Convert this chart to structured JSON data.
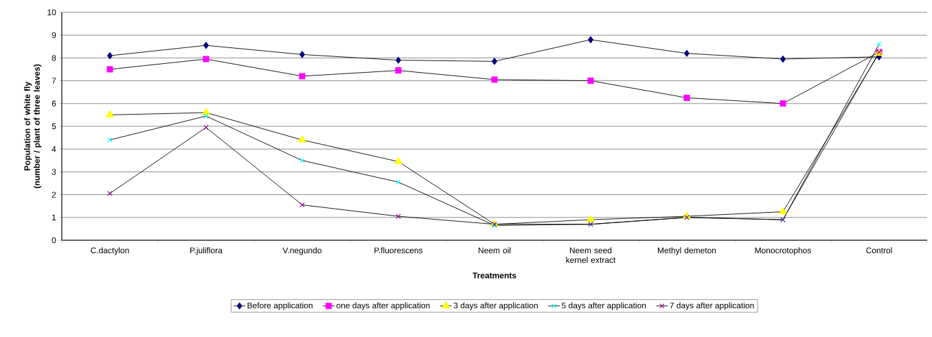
{
  "chart_data": {
    "type": "line",
    "xlabel": "Treatments",
    "ylabel": "Population of white fly (number / plant of three leaves)",
    "categories": [
      "C.dactylon",
      "P.juliflora",
      "V.negundo",
      "P.fluorescens",
      "Neem oil",
      "Neem seed kernel extract",
      "Methyl demeton",
      "Monocrotophos",
      "Control"
    ],
    "ylim": [
      0,
      10
    ],
    "yticks": [
      0,
      1,
      2,
      3,
      4,
      5,
      6,
      7,
      8,
      9,
      10
    ],
    "grid": "y",
    "legend": "bottom",
    "series": [
      {
        "name": "Before application",
        "color": "#000080",
        "marker": "diamond",
        "values": [
          8.1,
          8.55,
          8.15,
          7.9,
          7.85,
          8.8,
          8.2,
          7.95,
          8.05
        ]
      },
      {
        "name": "one days after application",
        "color": "#ff00ff",
        "marker": "square",
        "values": [
          7.5,
          7.95,
          7.2,
          7.45,
          7.05,
          7.0,
          6.25,
          6.0,
          8.25
        ]
      },
      {
        "name": "3 days after application",
        "color": "#ffff00",
        "marker": "triangle",
        "values": [
          5.5,
          5.6,
          4.4,
          3.45,
          0.7,
          0.9,
          1.05,
          1.25,
          8.2
        ]
      },
      {
        "name": "5 days after application",
        "color": "#00ffff",
        "marker": "cross",
        "values": [
          4.4,
          5.45,
          3.5,
          2.55,
          0.65,
          0.7,
          1.0,
          0.9,
          8.6
        ]
      },
      {
        "name": "7 days after application",
        "color": "#800080",
        "marker": "cross",
        "values": [
          2.05,
          4.95,
          1.55,
          1.05,
          0.7,
          0.7,
          1.0,
          0.9,
          8.25
        ]
      }
    ]
  }
}
